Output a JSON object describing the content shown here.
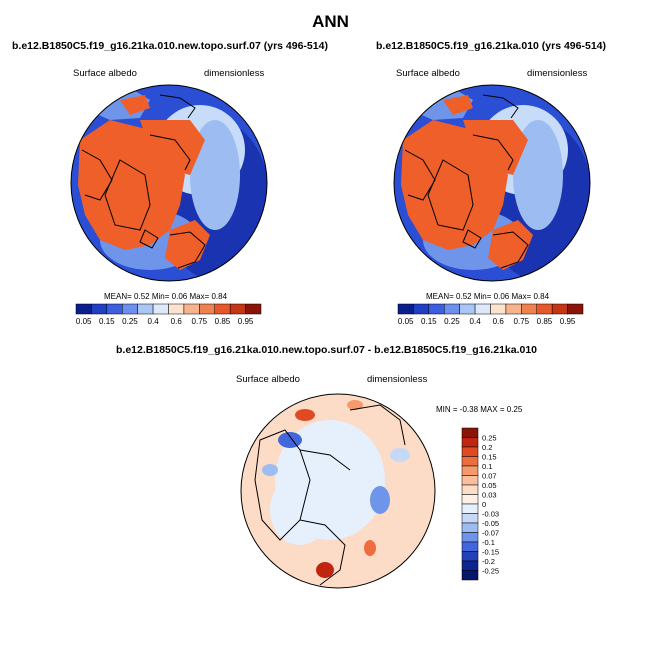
{
  "title": "ANN",
  "colors": {
    "background": "#ffffff",
    "land_outline": "#000000"
  },
  "chart_data": [
    {
      "type": "heatmap",
      "projection": "polar-stereographic (north)",
      "title": "b.e12.B1850C5.f19_g16.21ka.010.new.topo.surf.07 (yrs 496-514)",
      "left_label": "Surface albedo",
      "right_label": "dimensionless",
      "stats_text": {
        "mean_label": "MEAN=",
        "mean": "0.52",
        "min_label": "Min=",
        "min": "0.06",
        "max_label": "Max=",
        "max": "0.84"
      },
      "colorbar": {
        "orientation": "horizontal",
        "labels": [
          "0.05",
          "0.15",
          "0.25",
          "0.4",
          "0.6",
          "0.75",
          "0.85",
          "0.95"
        ],
        "colors": [
          "#0a1e8c",
          "#1f3fc4",
          "#3b5fe0",
          "#6c8ff0",
          "#a9c6f5",
          "#dde9fa",
          "#fde3cf",
          "#f7b48c",
          "#f08252",
          "#e8572a",
          "#c63514",
          "#8a1407"
        ]
      }
    },
    {
      "type": "heatmap",
      "projection": "polar-stereographic (north)",
      "title": "b.e12.B1850C5.f19_g16.21ka.010 (yrs 496-514)",
      "left_label": "Surface albedo",
      "right_label": "dimensionless",
      "stats_text": {
        "mean_label": "MEAN=",
        "mean": "0.52",
        "min_label": "Min=",
        "min": "0.06",
        "max_label": "Max=",
        "max": "0.84"
      },
      "colorbar": {
        "orientation": "horizontal",
        "labels": [
          "0.05",
          "0.15",
          "0.25",
          "0.4",
          "0.6",
          "0.75",
          "0.85",
          "0.95"
        ],
        "colors": [
          "#0a1e8c",
          "#1f3fc4",
          "#3b5fe0",
          "#6c8ff0",
          "#a9c6f5",
          "#dde9fa",
          "#fde3cf",
          "#f7b48c",
          "#f08252",
          "#e8572a",
          "#c63514",
          "#8a1407"
        ]
      }
    },
    {
      "type": "heatmap",
      "projection": "polar-stereographic (north)",
      "title": "b.e12.B1850C5.f19_g16.21ka.010.new.topo.surf.07 - b.e12.B1850C5.f19_g16.21ka.010",
      "left_label": "Surface albedo",
      "right_label": "dimensionless",
      "stats_text": {
        "min_label": "MIN =",
        "min": "-0.38",
        "max_label": "MAX =",
        "max": "0.25"
      },
      "colorbar": {
        "orientation": "vertical",
        "labels": [
          "0.25",
          "0.2",
          "0.15",
          "0.1",
          "0.07",
          "0.05",
          "0.03",
          "0",
          "-0.03",
          "-0.05",
          "-0.07",
          "-0.1",
          "-0.15",
          "-0.2",
          "-0.25"
        ],
        "colors": [
          "#8a1407",
          "#c0260f",
          "#e04a22",
          "#ee6d3f",
          "#f59a6c",
          "#f9bf9d",
          "#fcdcc6",
          "#fdf1e7",
          "#e6effc",
          "#c5d9f7",
          "#9dbcf1",
          "#6f95ea",
          "#4266dc",
          "#2340b8",
          "#0d2590",
          "#06166a"
        ]
      }
    }
  ]
}
